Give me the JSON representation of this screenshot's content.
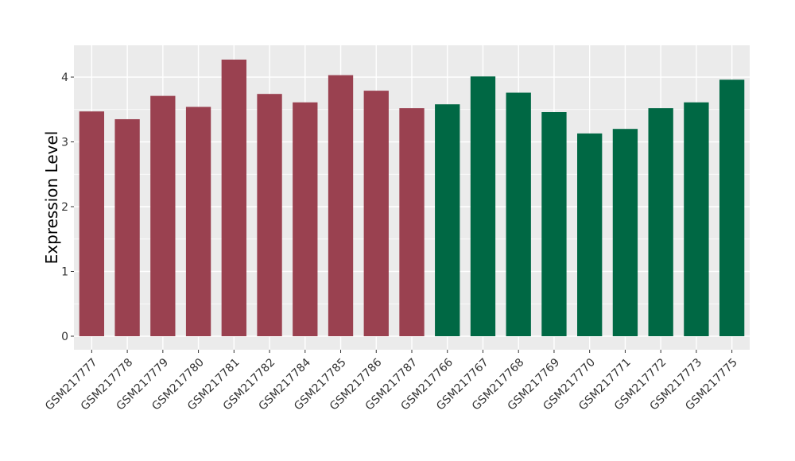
{
  "chart_data": {
    "type": "bar",
    "title": "",
    "xlabel": "",
    "ylabel": "Expression Level",
    "ylim": [
      0,
      4.45
    ],
    "yticks": [
      0,
      1,
      2,
      3,
      4
    ],
    "grid": true,
    "legend": "none",
    "colors": {
      "group1": "#9a4150",
      "group2": "#006844",
      "panel_bg": "#ebebeb",
      "grid": "#ffffff"
    },
    "categories": [
      "GSM217777",
      "GSM217778",
      "GSM217779",
      "GSM217780",
      "GSM217781",
      "GSM217782",
      "GSM217784",
      "GSM217785",
      "GSM217786",
      "GSM217787",
      "GSM217766",
      "GSM217767",
      "GSM217768",
      "GSM217769",
      "GSM217770",
      "GSM217771",
      "GSM217772",
      "GSM217773",
      "GSM217775"
    ],
    "values": [
      3.47,
      3.35,
      3.71,
      3.54,
      4.27,
      3.74,
      3.61,
      4.03,
      3.79,
      3.52,
      3.58,
      4.01,
      3.76,
      3.46,
      3.13,
      3.2,
      3.52,
      3.61,
      3.96
    ],
    "bar_groups": [
      "group1",
      "group1",
      "group1",
      "group1",
      "group1",
      "group1",
      "group1",
      "group1",
      "group1",
      "group1",
      "group2",
      "group2",
      "group2",
      "group2",
      "group2",
      "group2",
      "group2",
      "group2",
      "group2"
    ]
  }
}
